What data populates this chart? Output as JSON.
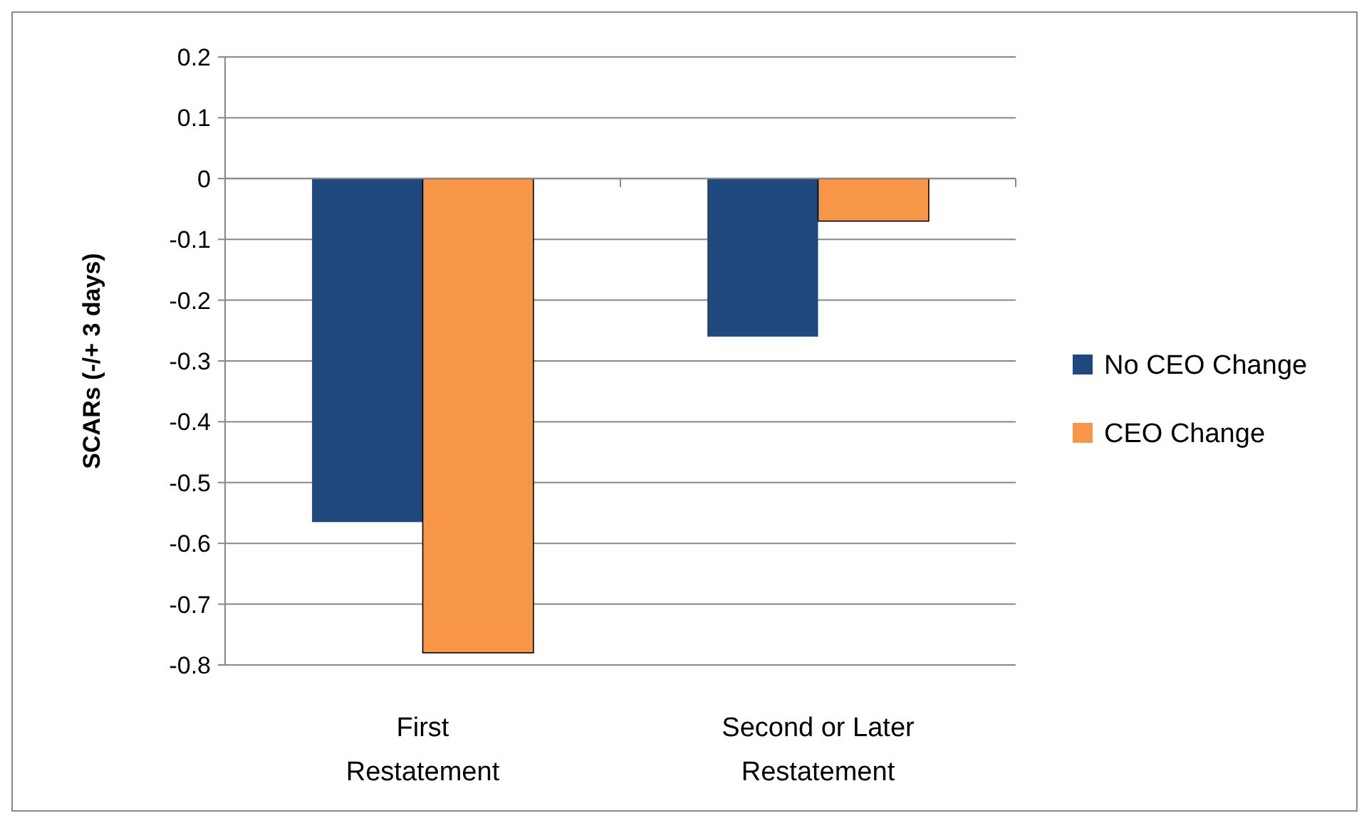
{
  "chart_data": {
    "type": "bar",
    "ylabel": "SCARs (-/+ 3 days)",
    "categories": [
      "First Restatement",
      "Second or Later Restatement"
    ],
    "series": [
      {
        "name": "No CEO Change",
        "color": "#1f497d",
        "values": [
          -0.565,
          -0.26
        ]
      },
      {
        "name": "CEO Change",
        "color": "#f79646",
        "values": [
          -0.78,
          -0.07
        ]
      }
    ],
    "ylim": [
      -0.8,
      0.2
    ],
    "yticks": [
      {
        "value": 0.2,
        "label": "0.2"
      },
      {
        "value": 0.1,
        "label": "0.1"
      },
      {
        "value": 0,
        "label": "0"
      },
      {
        "value": -0.1,
        "label": "-0.1"
      },
      {
        "value": -0.2,
        "label": "-0.2"
      },
      {
        "value": -0.3,
        "label": "-0.3"
      },
      {
        "value": -0.4,
        "label": "-0.4"
      },
      {
        "value": -0.5,
        "label": "-0.5"
      },
      {
        "value": -0.6,
        "label": "-0.6"
      },
      {
        "value": -0.7,
        "label": "-0.7"
      },
      {
        "value": -0.8,
        "label": "-0.8"
      }
    ],
    "grid": "y",
    "legend": "right"
  }
}
